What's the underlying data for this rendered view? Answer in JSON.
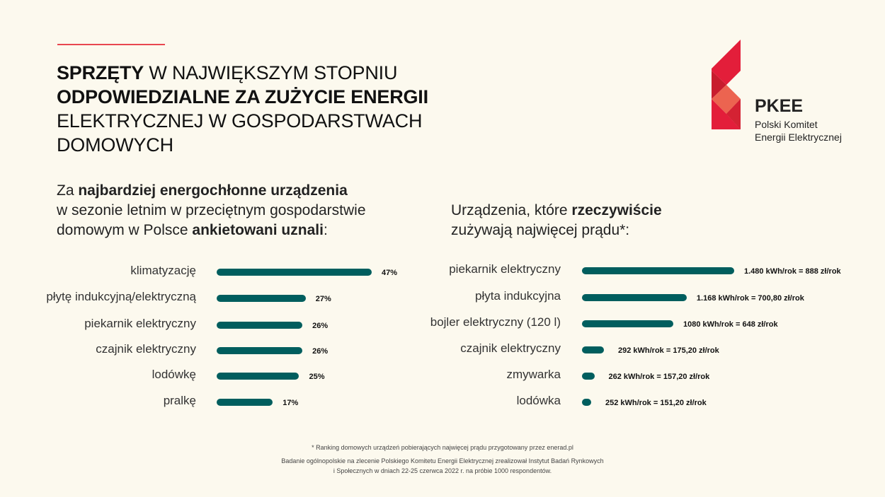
{
  "title": {
    "line1_bold": "SPRZĘTY",
    "line1_rest": " W NAJWIĘKSZYM STOPNIU",
    "line2_bold": "ODPOWIEDZIALNE ZA ZUŻYCIE ENERGII",
    "line3": "ELEKTRYCZNEJ W GOSPODARSTWACH",
    "line4": "DOMOWYCH"
  },
  "logo": {
    "acronym": "PKEE",
    "name_line1": "Polski Komitet",
    "name_line2": "Energii Elektrycznej"
  },
  "colors": {
    "bar": "#005e5e",
    "accent": "#e31e3a",
    "background": "#fcf9ee"
  },
  "chart_data": [
    {
      "type": "bar",
      "orientation": "horizontal",
      "title_parts": [
        "Za ",
        "najbardziej energochłonne urządzenia",
        "w sezonie letnim w przeciętnym gospodarstwie",
        "domowym w Polsce ",
        "ankietowani uznali",
        ":"
      ],
      "categories": [
        "klimatyzację",
        "płytę indukcyjną/elektryczną",
        "piekarnik elektryczny",
        "czajnik elektryczny",
        "lodówkę",
        "pralkę"
      ],
      "values": [
        47,
        27,
        26,
        26,
        25,
        17
      ],
      "data_labels": [
        "47%",
        "27%",
        "26%",
        "26%",
        "25%",
        "17%"
      ],
      "unit": "%"
    },
    {
      "type": "bar",
      "orientation": "horizontal",
      "title_parts": [
        "Urządzenia, które ",
        "rzeczywiście",
        "zużywają najwięcej prądu*:"
      ],
      "categories": [
        "piekarnik elektryczny",
        "płyta indukcyjna",
        "bojler elektryczny (120 l)",
        "czajnik elektryczny",
        "zmywarka",
        "lodówka"
      ],
      "values": [
        1480,
        1168,
        1080,
        292,
        262,
        252
      ],
      "data_labels": [
        "1.480 kWh/rok = 888 zł/rok",
        "1.168 kWh/rok = 700,80 zł/rok",
        "1080 kWh/rok = 648 zł/rok",
        "292 kWh/rok = 175,20 zł/rok",
        "262 kWh/rok = 157,20 zł/rok",
        "252 kWh/rok = 151,20 zł/rok"
      ],
      "unit": "kWh/rok"
    }
  ],
  "footer": {
    "note": "* Ranking domowych urządzeń pobierających najwięcej prądu przygotowany przez enerad.pl",
    "source_line1": "Badanie ogólnopolskie na zlecenie Polskiego Komitetu Energii Elektrycznej zrealizował Instytut Badań Rynkowych",
    "source_line2": "i Społecznych w dniach 22-25 czerwca 2022 r. na próbie 1000 respondentów."
  }
}
